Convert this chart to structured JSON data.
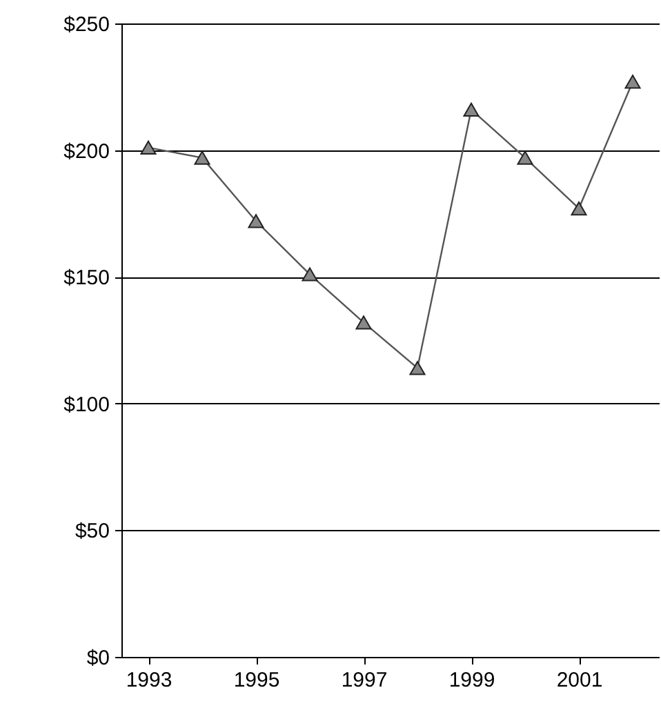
{
  "chart_data": {
    "type": "line",
    "x": [
      1993,
      1994,
      1995,
      1996,
      1997,
      1998,
      1999,
      2000,
      2001,
      2002
    ],
    "series": [
      {
        "color": "#555555",
        "values": [
          201,
          197,
          172,
          151,
          132,
          114,
          216,
          197,
          177,
          227
        ]
      }
    ],
    "xlim": [
      1992.5,
      2002.5
    ],
    "xticks": [
      1993,
      1995,
      1997,
      1999,
      2001
    ],
    "ylim": [
      0,
      250
    ],
    "yticks": [
      {
        "value": 0,
        "label": "$0"
      },
      {
        "value": 50,
        "label": "$50"
      },
      {
        "value": 100,
        "label": "$100"
      },
      {
        "value": 150,
        "label": "$150"
      },
      {
        "value": 200,
        "label": "$200"
      },
      {
        "value": 250,
        "label": "$250"
      }
    ],
    "grid": "y",
    "marker": "triangle",
    "line_style": "solid"
  }
}
